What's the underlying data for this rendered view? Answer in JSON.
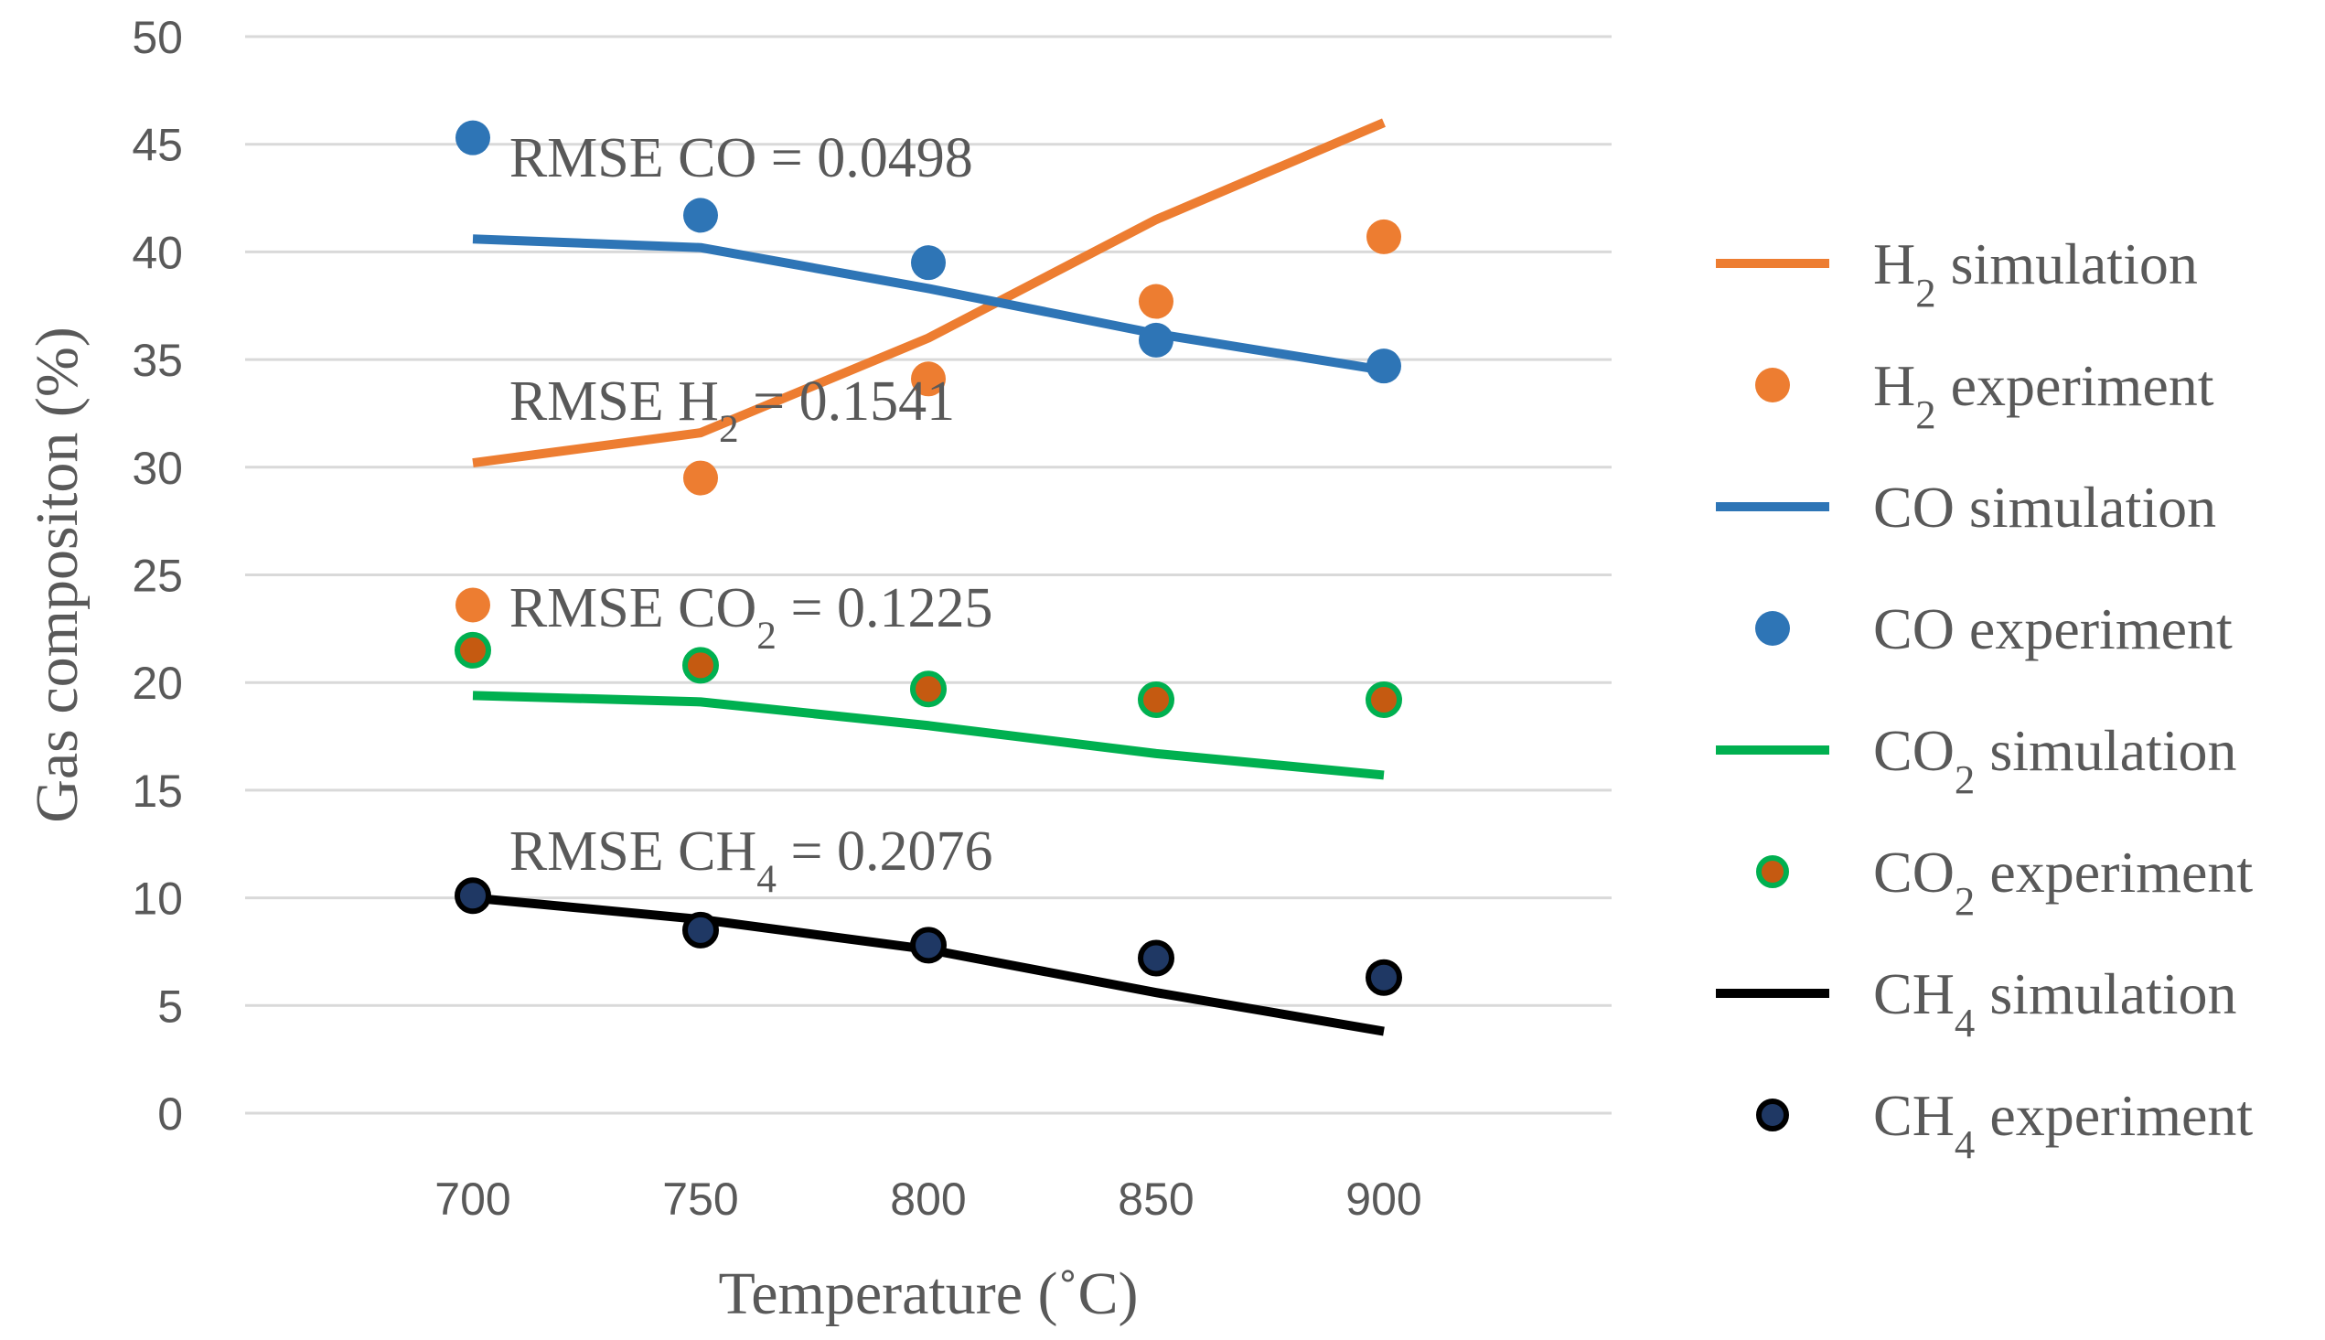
{
  "chart_data": {
    "type": "line",
    "title": "",
    "xlabel": "Temperature (˚C)",
    "ylabel": "Gas compositon (%)",
    "x": [
      700,
      750,
      800,
      850,
      900
    ],
    "xlim": [
      650,
      950
    ],
    "ylim": [
      0,
      50
    ],
    "yticks": [
      0,
      5,
      10,
      15,
      20,
      25,
      30,
      35,
      40,
      45,
      50
    ],
    "xticks": [
      700,
      750,
      800,
      850,
      900
    ],
    "grid": true,
    "legend_position": "right",
    "series": [
      {
        "name": "H2 simulation",
        "base": "H",
        "sub": "2",
        "rest": " simulation",
        "kind": "line",
        "color": "#ED7D31",
        "values": [
          30.2,
          31.6,
          36.0,
          41.5,
          46.0
        ]
      },
      {
        "name": "H2 experiment",
        "base": "H",
        "sub": "2",
        "rest": " experiment",
        "kind": "marker",
        "color": "#ED7D31",
        "edge": "#ED7D31",
        "values": [
          23.6,
          29.5,
          34.1,
          37.7,
          40.7
        ]
      },
      {
        "name": "CO simulation",
        "base": "CO",
        "sub": "",
        "rest": " simulation",
        "kind": "line",
        "color": "#2E75B6",
        "values": [
          40.6,
          40.2,
          38.3,
          36.2,
          34.5
        ]
      },
      {
        "name": "CO experiment",
        "base": "CO",
        "sub": "",
        "rest": " experiment",
        "kind": "marker",
        "color": "#2E75B6",
        "edge": "#2E75B6",
        "values": [
          45.3,
          41.7,
          39.5,
          35.9,
          34.7
        ]
      },
      {
        "name": "CO2 simulation",
        "base": "CO",
        "sub": "2",
        "rest": " simulation",
        "kind": "line",
        "color": "#00B050",
        "values": [
          19.4,
          19.1,
          18.0,
          16.7,
          15.7
        ]
      },
      {
        "name": "CO2 experiment",
        "base": "CO",
        "sub": "2",
        "rest": " experiment",
        "kind": "marker",
        "color": "#C55A11",
        "edge": "#00B050",
        "values": [
          21.5,
          20.8,
          19.7,
          19.2,
          19.2
        ]
      },
      {
        "name": "CH4 simulation",
        "base": "CH",
        "sub": "4",
        "rest": " simulation",
        "kind": "line",
        "color": "#000000",
        "values": [
          10.0,
          9.0,
          7.6,
          5.6,
          3.8
        ]
      },
      {
        "name": "CH4 experiment",
        "base": "CH",
        "sub": "4",
        "rest": " experiment",
        "kind": "marker",
        "color": "#1F3864",
        "edge": "#000000",
        "values": [
          10.1,
          8.5,
          7.8,
          7.2,
          6.3
        ]
      }
    ],
    "annotations": [
      {
        "base": "RMSE CO",
        "sub": "",
        "rest": " = 0.0498",
        "at_x": 708,
        "at_y": 43.5
      },
      {
        "base": "RMSE H",
        "sub": "2",
        "rest": " = 0.1541",
        "at_x": 708,
        "at_y": 32.2
      },
      {
        "base": "RMSE CO",
        "sub": "2",
        "rest": " = 0.1225",
        "at_x": 708,
        "at_y": 22.6
      },
      {
        "base": "RMSE CH",
        "sub": "4",
        "rest": " = 0.2076",
        "at_x": 708,
        "at_y": 11.3
      }
    ]
  }
}
